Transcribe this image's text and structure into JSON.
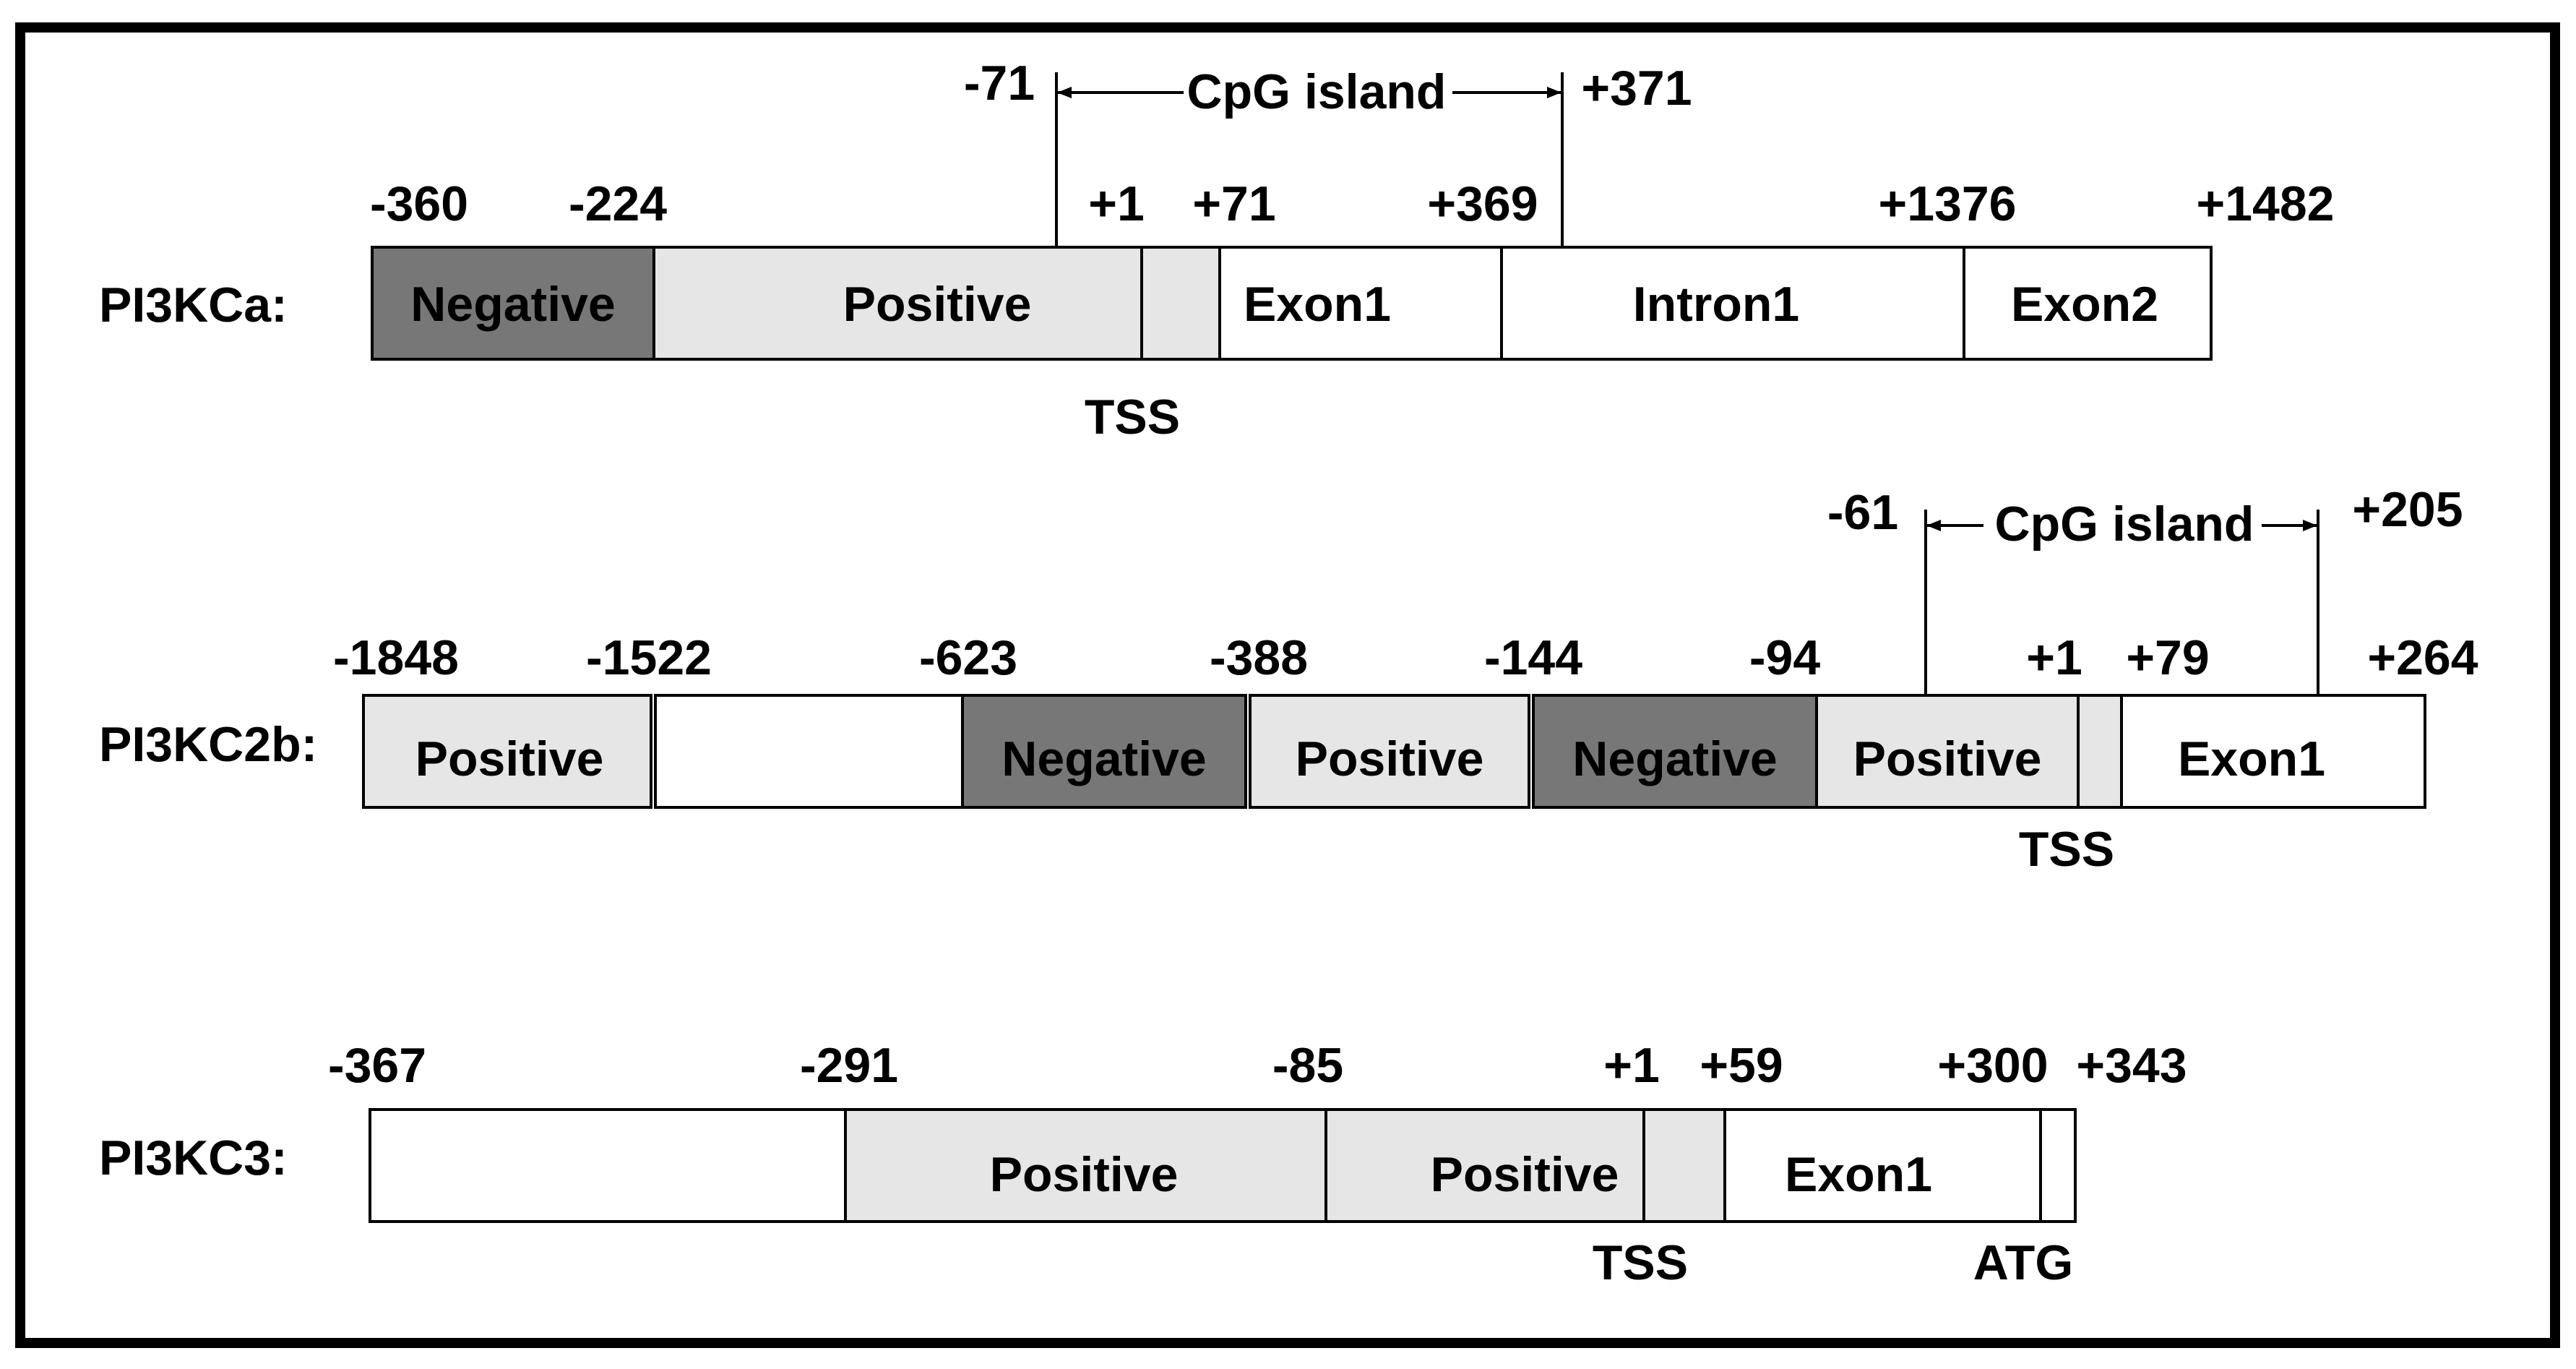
{
  "colors": {
    "negative": "#777777",
    "positive": "#e6e6e6",
    "plain": "#ffffff",
    "tss": "#e6e6e6",
    "outline": "#000000"
  },
  "genes": [
    {
      "id": "pi3kca",
      "name": "PI3KCa:",
      "segments": [
        {
          "label": "Negative",
          "fill": "negative"
        },
        {
          "label": "Positive",
          "fill": "positive"
        },
        {
          "label": "",
          "fill": "tss"
        },
        {
          "label": "Exon1",
          "fill": "plain"
        },
        {
          "label": "Intron1",
          "fill": "plain"
        },
        {
          "label": "Exon2",
          "fill": "plain"
        }
      ],
      "positions": [
        "-360",
        "-224",
        "+1",
        "+71",
        "+369",
        "+1376",
        "+1482"
      ],
      "markers": [
        "TSS"
      ],
      "cpg": {
        "label": "CpG island",
        "start": "-71",
        "end": "+371"
      }
    },
    {
      "id": "pi3kc2b",
      "name": "PI3KC2b:",
      "segments": [
        {
          "label": "Positive",
          "fill": "positive"
        },
        {
          "label": "",
          "fill": "plain"
        },
        {
          "label": "Negative",
          "fill": "negative"
        },
        {
          "label": "Positive",
          "fill": "positive"
        },
        {
          "label": "Negative",
          "fill": "negative"
        },
        {
          "label": "Positive",
          "fill": "positive"
        },
        {
          "label": "",
          "fill": "tss"
        },
        {
          "label": "Exon1",
          "fill": "plain"
        }
      ],
      "positions": [
        "-1848",
        "-1522",
        "-623",
        "-388",
        "-144",
        "-94",
        "+1",
        "+79",
        "+264"
      ],
      "markers": [
        "TSS"
      ],
      "cpg": {
        "label": "CpG island",
        "start": "-61",
        "end": "+205"
      }
    },
    {
      "id": "pi3kc3",
      "name": "PI3KC3:",
      "segments": [
        {
          "label": "",
          "fill": "plain"
        },
        {
          "label": "Positive",
          "fill": "positive"
        },
        {
          "label": "Positive",
          "fill": "positive"
        },
        {
          "label": "",
          "fill": "tss"
        },
        {
          "label": "Exon1",
          "fill": "plain"
        },
        {
          "label": "",
          "fill": "plain"
        }
      ],
      "positions": [
        "-367",
        "-291",
        "-85",
        "+1",
        "+59",
        "+300",
        "+343"
      ],
      "markers": [
        "TSS",
        "ATG"
      ]
    }
  ]
}
